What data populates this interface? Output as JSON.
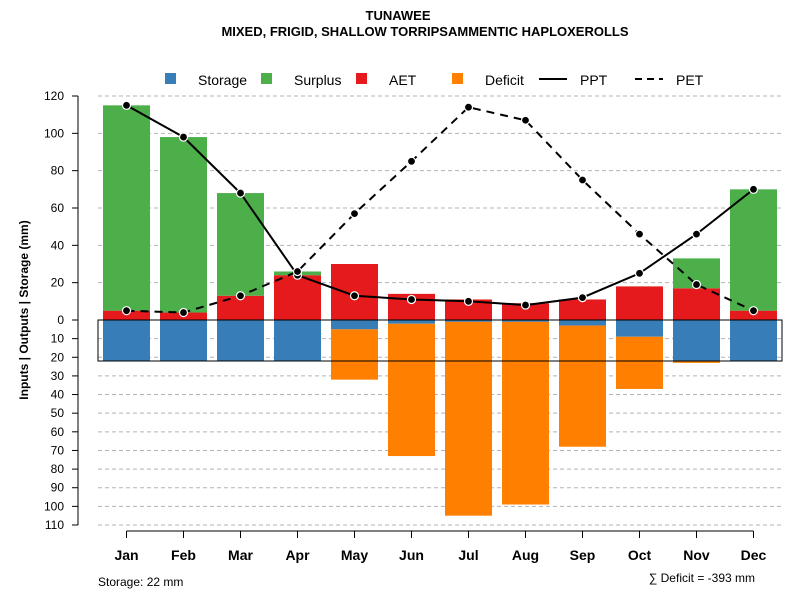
{
  "chart_data": {
    "type": "bar",
    "title": "TUNAWEE",
    "subtitle": "MIXED, FRIGID, SHALLOW TORRIPSAMMENTIC HAPLOXEROLLS",
    "ylabel": "Inputs | Outputs | Storage    (mm)",
    "categories": [
      "Jan",
      "Feb",
      "Mar",
      "Apr",
      "May",
      "Jun",
      "Jul",
      "Aug",
      "Sep",
      "Oct",
      "Nov",
      "Dec"
    ],
    "upper_axis": {
      "ylim": [
        0,
        120
      ],
      "ticks": [
        "0",
        "20",
        "40",
        "60",
        "80",
        "100",
        "120"
      ]
    },
    "lower_axis": {
      "ylim": [
        0,
        110
      ],
      "ticks": [
        "10",
        "20",
        "30",
        "40",
        "50",
        "60",
        "70",
        "80",
        "90",
        "100",
        "110"
      ]
    },
    "storage_capacity": 22,
    "series": [
      {
        "name": "Storage",
        "color": "#377EB8",
        "axis": "lower",
        "values": [
          22,
          22,
          22,
          22,
          5,
          2,
          1,
          1,
          3,
          9,
          22,
          22
        ]
      },
      {
        "name": "Deficit",
        "color": "#FF7F00",
        "axis": "lower",
        "values": [
          0,
          0,
          0,
          0,
          27,
          71,
          104,
          98,
          65,
          28,
          1,
          0
        ]
      },
      {
        "name": "AET",
        "color": "#E41A1C",
        "axis": "upper",
        "values": [
          5,
          4,
          13,
          24,
          30,
          14,
          11,
          9,
          11,
          18,
          17,
          5
        ]
      },
      {
        "name": "Surplus",
        "color": "#4DAF4A",
        "axis": "upper",
        "values": [
          110,
          94,
          55,
          2,
          0,
          0,
          0,
          0,
          0,
          0,
          16,
          65
        ]
      },
      {
        "name": "PPT",
        "line": "solid",
        "axis": "upper",
        "values": [
          115,
          98,
          68,
          24,
          13,
          11,
          10,
          8,
          12,
          25,
          46,
          70
        ]
      },
      {
        "name": "PET",
        "line": "dashed",
        "axis": "upper",
        "values": [
          5,
          4,
          13,
          26,
          57,
          85,
          114,
          107,
          75,
          46,
          19,
          5
        ]
      }
    ]
  },
  "legend": {
    "storage": "Storage",
    "surplus": "Surplus",
    "aet": "AET",
    "deficit": "Deficit",
    "ppt": "PPT",
    "pet": "PET"
  },
  "footer": {
    "storage_note": "Storage: 22 mm",
    "deficit_note": "∑ Deficit = -393 mm"
  }
}
